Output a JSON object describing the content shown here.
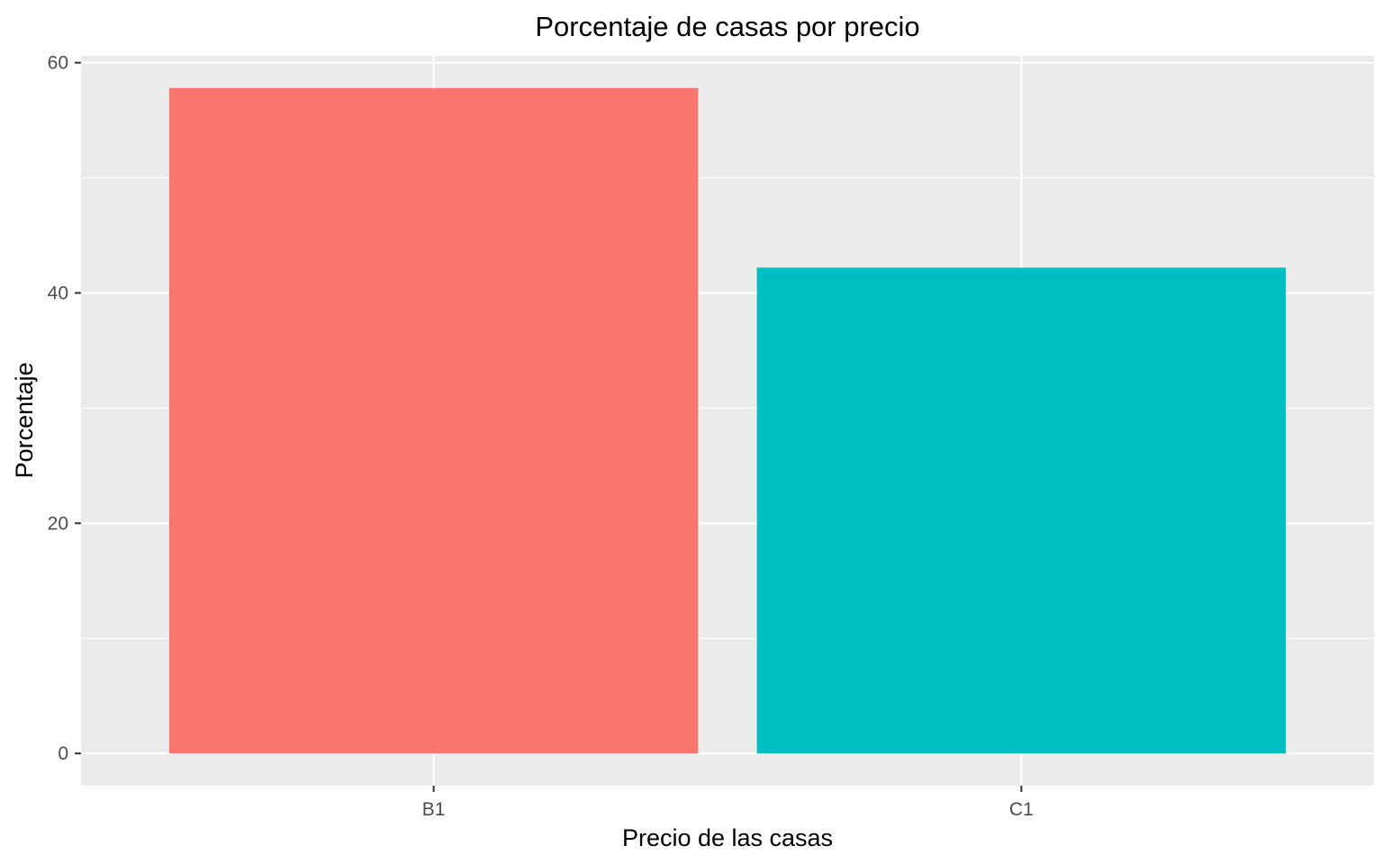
{
  "chart_data": {
    "type": "bar",
    "title": "Porcentaje de casas por precio",
    "xlabel": "Precio de las casas",
    "ylabel": "Porcentaje",
    "categories": [
      "B1",
      "C1"
    ],
    "values": [
      57.8,
      42.2
    ],
    "colors": [
      "#F8766D",
      "#00BFC4"
    ],
    "ylim": [
      -2.8,
      60.6
    ],
    "yticks": [
      0,
      20,
      40,
      60
    ],
    "yminor": [
      10,
      30,
      50
    ],
    "grid": true,
    "panel_background": "#EBEBEB",
    "grid_color": "#FFFFFF",
    "legend": "none"
  }
}
